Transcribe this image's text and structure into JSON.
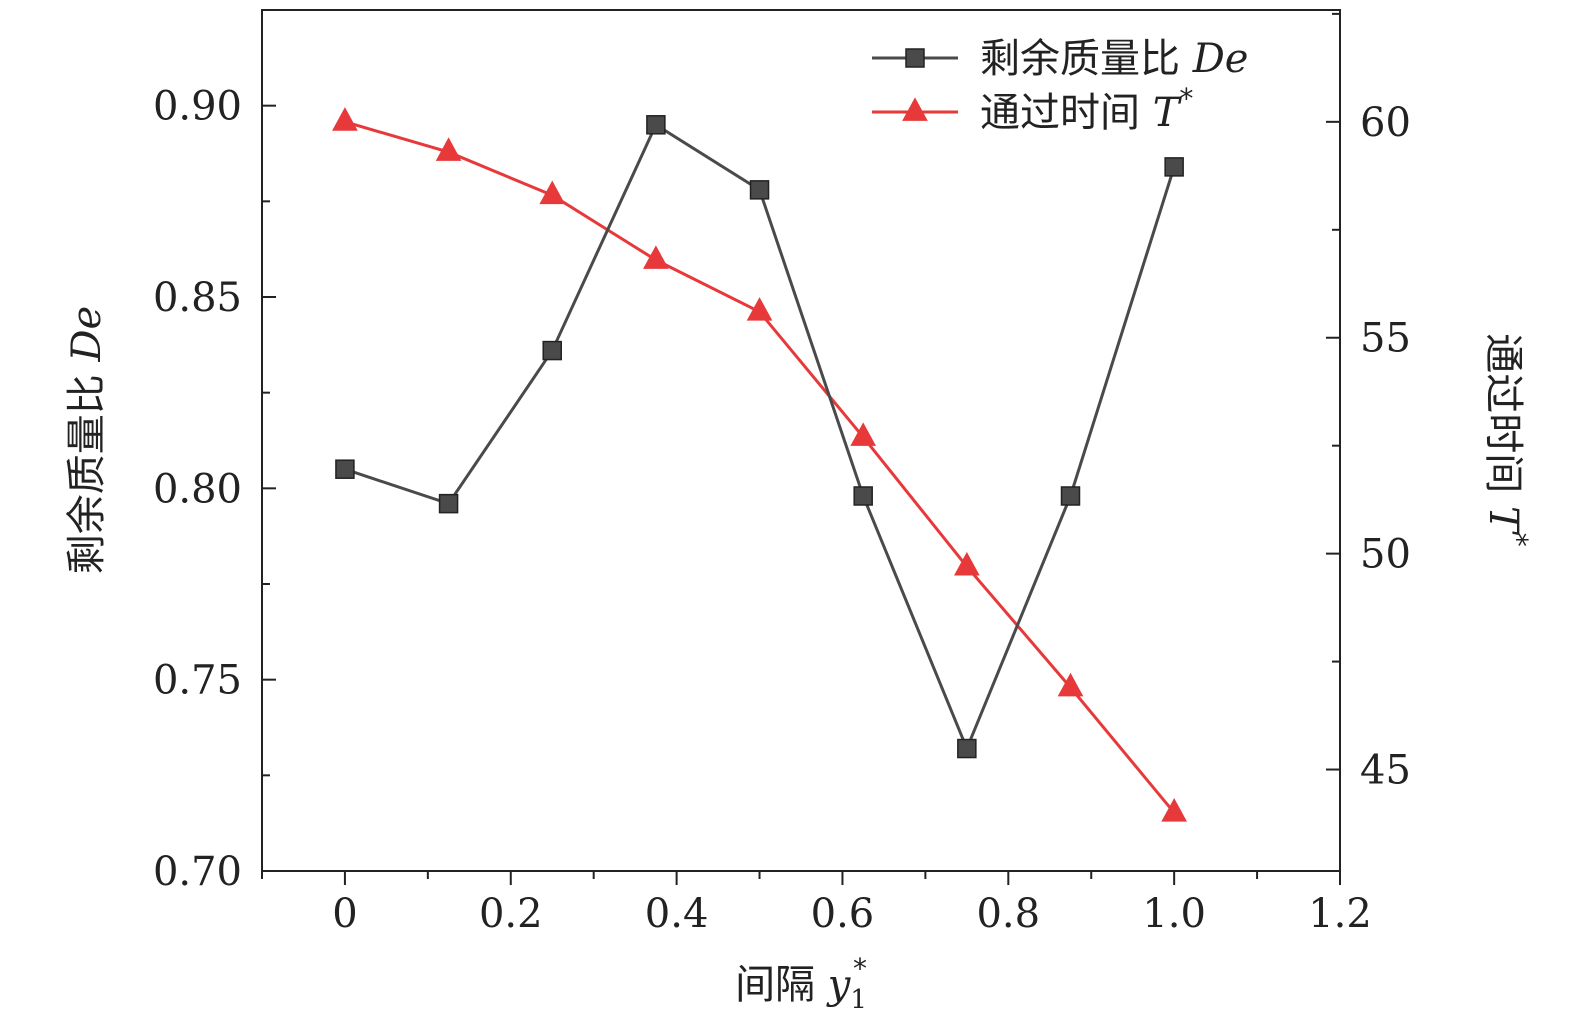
{
  "chart_data": {
    "type": "line",
    "x": [
      0,
      0.125,
      0.25,
      0.375,
      0.5,
      0.625,
      0.75,
      0.875,
      1.0
    ],
    "xlabel": {
      "text": "间隔 ",
      "var": "y",
      "sub": "1",
      "sup": "*"
    },
    "ylabel_left": {
      "text": "剩余质量比 ",
      "var": "De"
    },
    "ylabel_right": {
      "text": "通过时间 ",
      "var": "T",
      "sup": "*"
    },
    "xlim": [
      -0.1,
      1.2
    ],
    "ylim_left": [
      0.7,
      0.925
    ],
    "ylim_right": [
      42.65,
      62.59
    ],
    "xticks": [
      0,
      0.2,
      0.4,
      0.6,
      0.8,
      1.0,
      1.2
    ],
    "xtick_labels": [
      "0",
      "0.2",
      "0.4",
      "0.6",
      "0.8",
      "1.0",
      "1.2"
    ],
    "yticks_left": [
      0.7,
      0.75,
      0.8,
      0.85,
      0.9
    ],
    "ytick_labels_left": [
      "0.70",
      "0.75",
      "0.80",
      "0.85",
      "0.90"
    ],
    "yticks_right": [
      45,
      50,
      55,
      60
    ],
    "ytick_labels_right": [
      "45",
      "50",
      "55",
      "60"
    ],
    "grid": false,
    "legend_position": "top-right",
    "series": [
      {
        "name": "剩余质量比 ",
        "name_var": "De",
        "axis": "left",
        "marker": "square",
        "color": "#4a4a4a",
        "values": [
          0.805,
          0.796,
          0.836,
          0.895,
          0.878,
          0.798,
          0.732,
          0.798,
          0.884
        ]
      },
      {
        "name": "通过时间 ",
        "name_var": "T",
        "name_sup": "*",
        "axis": "right",
        "marker": "triangle",
        "color": "#e8393a",
        "values": [
          60.0,
          59.3,
          58.3,
          56.8,
          55.6,
          52.7,
          49.7,
          46.9,
          44.0
        ]
      }
    ]
  }
}
